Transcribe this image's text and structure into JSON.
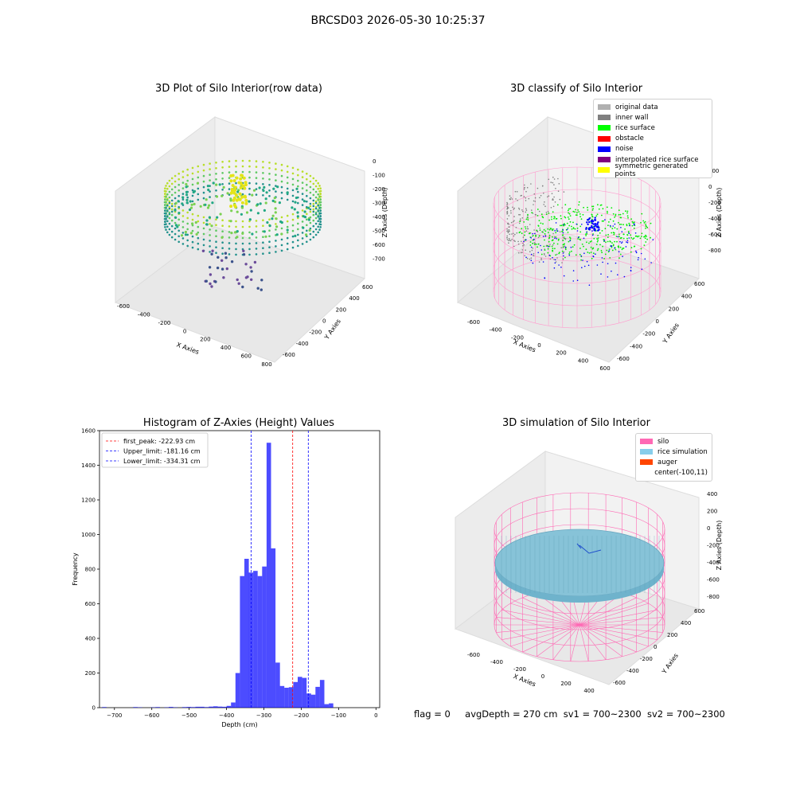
{
  "suptitle": "BRCSD03 2026-05-30 10:25:37",
  "panels": {
    "raw": {
      "title": "3D Plot of Silo Interior(row data)",
      "xlabel": "X Axies",
      "ylabel": "Y Axies",
      "zlabel": "Z Axies (Depth)",
      "xticks": [
        "-600",
        "-400",
        "-200",
        "0",
        "200",
        "400",
        "600",
        "800"
      ],
      "yticks": [
        "-600",
        "-400",
        "-200",
        "0",
        "200",
        "400",
        "600"
      ],
      "zticks": [
        "0",
        "-100",
        "-200",
        "-300",
        "-400",
        "-500",
        "-600",
        "-700"
      ]
    },
    "classify": {
      "title": "3D classify of Silo Interior",
      "xlabel": "X Axies",
      "ylabel": "Y Axies",
      "zlabel": "Z Axies (Depth)",
      "xticks": [
        "-600",
        "-400",
        "-200",
        "0",
        "200",
        "400",
        "600"
      ],
      "yticks": [
        "-600",
        "-400",
        "-200",
        "0",
        "200",
        "400",
        "600"
      ],
      "zticks": [
        "200",
        "0",
        "-200",
        "-400",
        "-600",
        "-800"
      ],
      "legend": [
        {
          "label": "original data",
          "color": "#b0b0b0"
        },
        {
          "label": "inner wall",
          "color": "#808080"
        },
        {
          "label": "rice surface",
          "color": "#00ff00"
        },
        {
          "label": "obstacle",
          "color": "#ff0000"
        },
        {
          "label": "noise",
          "color": "#0000ff"
        },
        {
          "label": "interpolated rice surface",
          "color": "#800080"
        },
        {
          "label": "symmetric generated points",
          "color": "#ffff00"
        }
      ]
    },
    "simulation": {
      "title": "3D simulation of Silo Interior",
      "xlabel": "X Axies",
      "ylabel": "Y Axies",
      "zlabel": "Z Axies (Depth)",
      "xticks": [
        "-600",
        "-400",
        "-200",
        "0",
        "200",
        "400"
      ],
      "yticks": [
        "-600",
        "-400",
        "-200",
        "0",
        "200",
        "400",
        "600"
      ],
      "zticks": [
        "400",
        "200",
        "0",
        "-200",
        "-400",
        "-600",
        "-800"
      ],
      "legend": [
        {
          "label": "silo",
          "color": "#ff69b4"
        },
        {
          "label": "rice simulation",
          "color": "#87ceeb"
        },
        {
          "label": "auger",
          "color": "#ff4500"
        },
        {
          "label": "center(-100,11)",
          "color": ""
        }
      ]
    }
  },
  "footer": {
    "flag": "flag = 0",
    "avg": "avgDepth = 270 cm",
    "sv1": "sv1 = 700~2300",
    "sv2": "sv2 = 700~2300"
  },
  "chart_data": {
    "type": "bar",
    "title": "Histogram of Z-Axies (Height) Values",
    "xlabel": "Depth (cm)",
    "ylabel": "Frequency",
    "xlim": [
      -740,
      10
    ],
    "ylim": [
      0,
      1600
    ],
    "xticks": [
      -700,
      -600,
      -500,
      -400,
      -300,
      -200,
      -100,
      0
    ],
    "yticks": [
      0,
      200,
      400,
      600,
      800,
      1000,
      1200,
      1400,
      1600
    ],
    "bar_color": "#0000ff",
    "bin_edges_start": -745,
    "bin_width": 11.9,
    "values": [
      0,
      3,
      0,
      0,
      0,
      0,
      0,
      0,
      3,
      2,
      0,
      0,
      2,
      3,
      0,
      2,
      4,
      2,
      0,
      3,
      4,
      3,
      5,
      5,
      3,
      6,
      8,
      6,
      5,
      10,
      30,
      200,
      760,
      860,
      780,
      790,
      760,
      815,
      1530,
      920,
      260,
      125,
      115,
      118,
      148,
      178,
      172,
      82,
      75,
      120,
      160,
      20,
      25,
      0
    ],
    "vlines": [
      {
        "label": "first_peak: -222.93 cm",
        "x": -222.93,
        "color": "#ff0000"
      },
      {
        "label": "Upper_limit: -181.16 cm",
        "x": -181.16,
        "color": "#0000ff"
      },
      {
        "label": "Lower_limit: -334.31 cm",
        "x": -334.31,
        "color": "#0000ff"
      }
    ]
  }
}
